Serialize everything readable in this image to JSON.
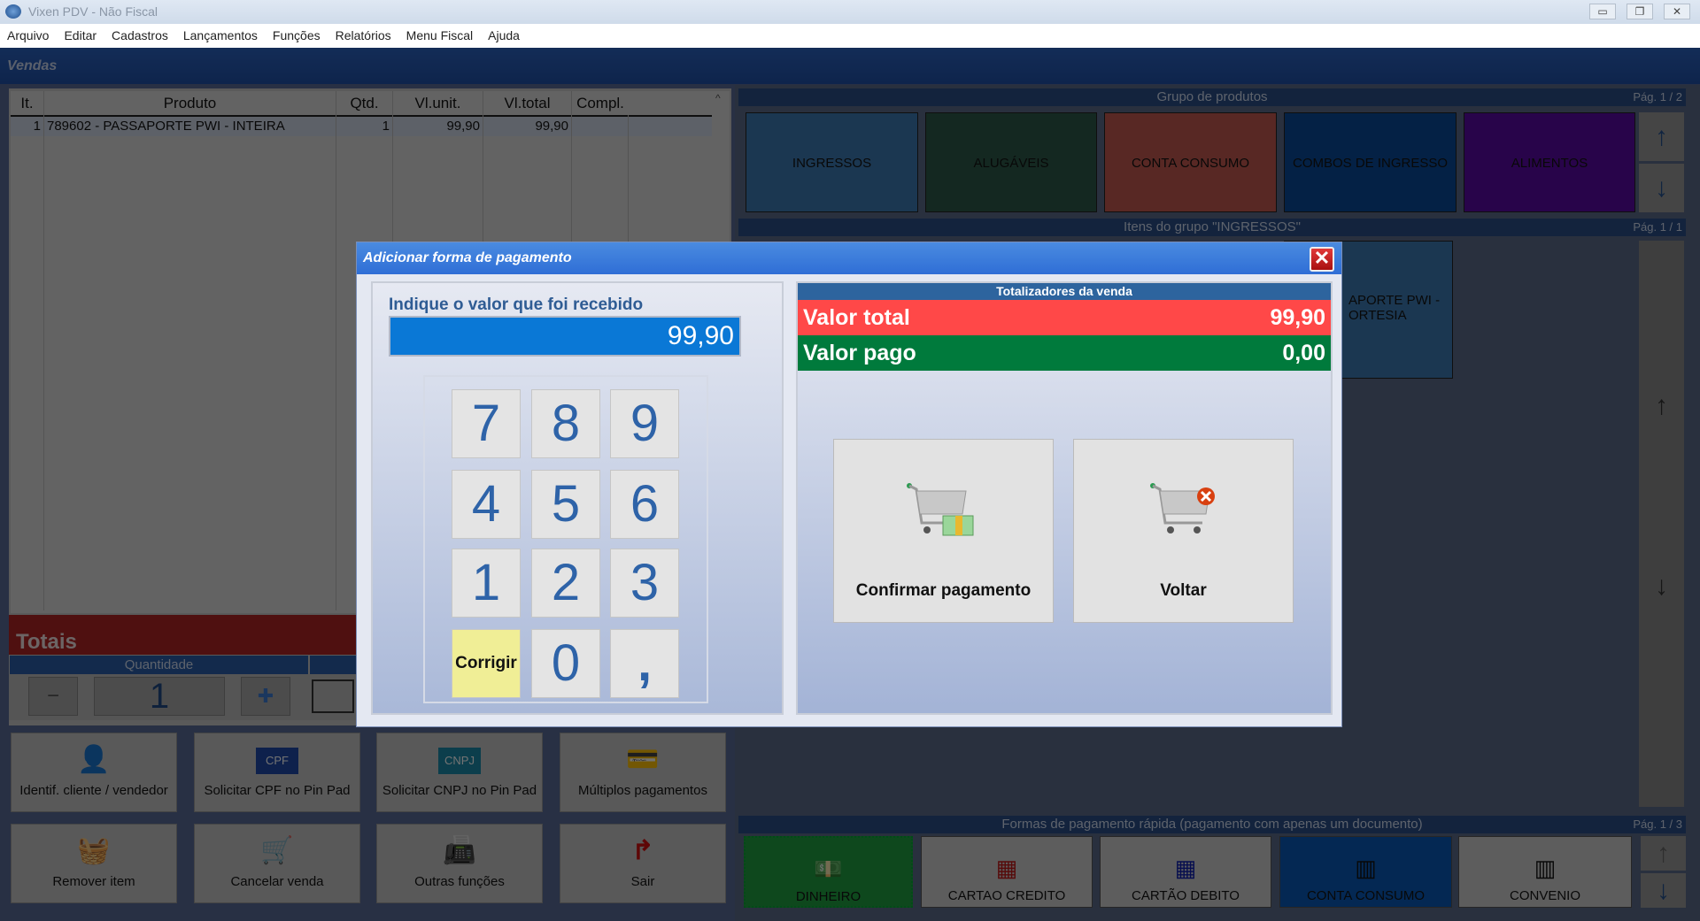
{
  "window": {
    "title": "Vixen PDV - Não Fiscal",
    "controls": [
      "▭",
      "❐",
      "✕"
    ]
  },
  "menu": [
    "Arquivo",
    "Editar",
    "Cadastros",
    "Lançamentos",
    "Funções",
    "Relatórios",
    "Menu Fiscal",
    "Ajuda"
  ],
  "section": "Vendas",
  "table": {
    "columns": [
      "It.",
      "Produto",
      "Qtd.",
      "Vl.unit.",
      "Vl.total",
      "Compl."
    ],
    "rows": [
      {
        "it": "1",
        "produto": "789602 - PASSAPORTE PWI - INTEIRA",
        "qtd": "1",
        "unit": "99,90",
        "total": "99,90",
        "compl": ""
      }
    ]
  },
  "totais": {
    "title": "Totais",
    "quantidade_label": "Quantidade",
    "quantidade": "1",
    "minus": "−",
    "plus": "✚"
  },
  "functions": [
    {
      "label": "Identif. cliente / vendedor",
      "icon": "user-search-icon",
      "glyph": "👤"
    },
    {
      "label": "Solicitar CPF no Pin Pad",
      "icon": "cpf-card-icon",
      "glyph": "CPF"
    },
    {
      "label": "Solicitar CNPJ no Pin Pad",
      "icon": "cnpj-card-icon",
      "glyph": "CNPJ"
    },
    {
      "label": "Múltiplos pagamentos",
      "icon": "multiple-payments-icon",
      "glyph": "💳"
    },
    {
      "label": "Remover item",
      "icon": "remove-basket-icon",
      "glyph": "🧺"
    },
    {
      "label": "Cancelar venda",
      "icon": "cancel-cart-icon",
      "glyph": "🛒"
    },
    {
      "label": "Outras funções",
      "icon": "terminal-icon",
      "glyph": "📠"
    },
    {
      "label": "Sair",
      "icon": "exit-icon",
      "glyph": "↱"
    }
  ],
  "groups": {
    "title": "Grupo de produtos",
    "page": "Pág. 1 / 2",
    "items": [
      {
        "label": "INGRESSOS",
        "color": "#3d7bb4"
      },
      {
        "label": "ALUGÁVEIS",
        "color": "#2c5a4a"
      },
      {
        "label": "CONTA CONSUMO",
        "color": "#c45a50"
      },
      {
        "label": "COMBOS DE INGRESSO",
        "color": "#0a4a9a"
      },
      {
        "label": "ALIMENTOS",
        "color": "#5a0aa4"
      }
    ]
  },
  "group_items": {
    "title": "Itens do grupo \"INGRESSOS\"",
    "page": "Pág. 1 / 1",
    "items": [
      "PASSAPORTE PWI - CORTESIA"
    ],
    "visible_text": "APORTE PWI -\nORTESIA"
  },
  "quick_payments": {
    "title": "Formas de pagamento rápida (pagamento com apenas um documento)",
    "page": "Pág. 1 / 3",
    "items": [
      {
        "label": "DINHEIRO",
        "color": "#1fa040",
        "icon": "cash-icon"
      },
      {
        "label": "CARTAO CREDITO",
        "color": "#cfcfcf",
        "icon": "credit-card-icon"
      },
      {
        "label": "CARTÃO DEBITO",
        "color": "#cfcfcf",
        "icon": "debit-card-icon"
      },
      {
        "label": "CONTA CONSUMO",
        "color": "#0a5ab8",
        "icon": "barcode-icon"
      },
      {
        "label": "CONVENIO",
        "color": "#cfcfcf",
        "icon": "barcode-icon"
      }
    ]
  },
  "dialog": {
    "title": "Adicionar forma de pagamento",
    "prompt": "Indique o valor que foi recebido",
    "value": "99,90",
    "keys": [
      "7",
      "8",
      "9",
      "4",
      "5",
      "6",
      "1",
      "2",
      "3",
      "Corrigir",
      "0",
      ","
    ],
    "totalizers_title": "Totalizadores da venda",
    "valor_total_label": "Valor total",
    "valor_total": "99,90",
    "valor_pago_label": "Valor pago",
    "valor_pago": "0,00",
    "confirm": "Confirmar pagamento",
    "back": "Voltar"
  },
  "colors": {
    "valor_total": "#ff4848",
    "valor_pago": "#007a3c",
    "input": "#0a78d6"
  }
}
